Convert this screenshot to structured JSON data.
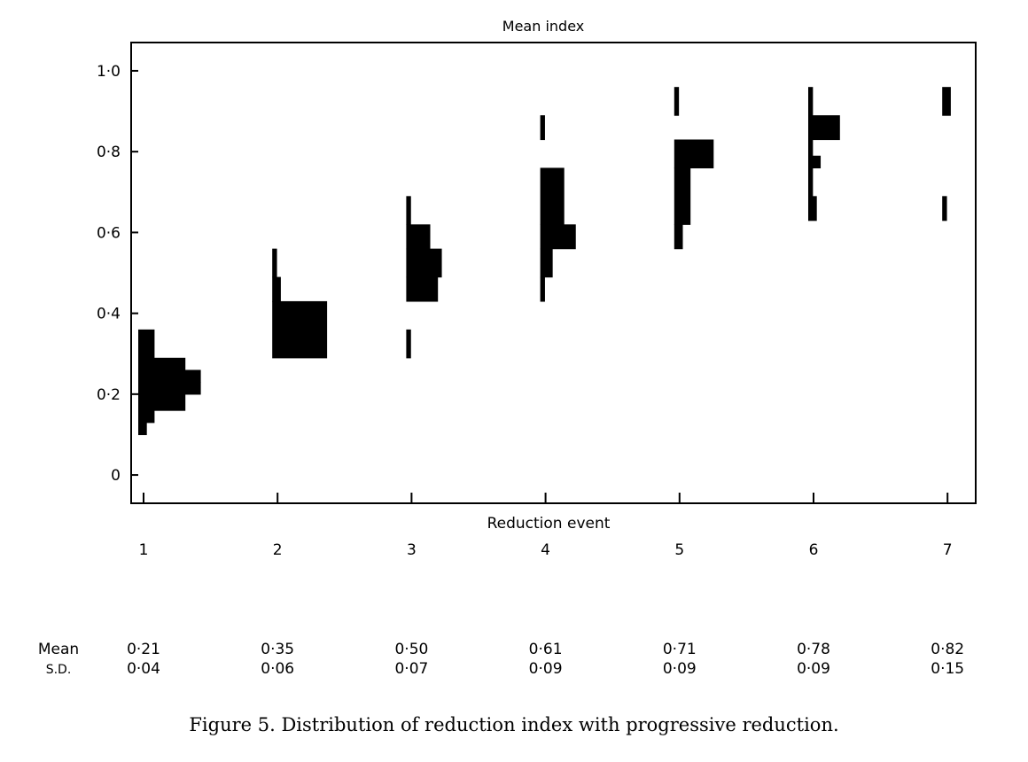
{
  "chart_data": {
    "type": "histogram",
    "ylabel": "Mean index",
    "xlabel": "Reduction event",
    "categories": [
      "1",
      "2",
      "3",
      "4",
      "5",
      "6",
      "7"
    ],
    "ylim": [
      -0.07,
      1.07
    ],
    "yticks": [
      0,
      0.2,
      0.4,
      0.6,
      0.8,
      1.0
    ],
    "ytick_labels": [
      "0",
      "0·2",
      "0·4",
      "0·6",
      "0·8",
      "1·0"
    ],
    "distributions": [
      {
        "event": 1,
        "bins": [
          [
            0.1,
            0.13,
            1
          ],
          [
            0.13,
            0.16,
            2
          ],
          [
            0.16,
            0.2,
            6
          ],
          [
            0.2,
            0.23,
            8
          ],
          [
            0.23,
            0.26,
            8
          ],
          [
            0.26,
            0.29,
            6
          ],
          [
            0.29,
            0.36,
            2
          ]
        ]
      },
      {
        "event": 2,
        "bins": [
          [
            0.29,
            0.43,
            7
          ],
          [
            0.43,
            0.49,
            1
          ],
          [
            0.49,
            0.56,
            0.5
          ]
        ]
      },
      {
        "event": 3,
        "bins": [
          [
            0.29,
            0.36,
            0.5
          ],
          [
            0.43,
            0.49,
            4
          ],
          [
            0.49,
            0.56,
            4.5
          ],
          [
            0.56,
            0.62,
            3
          ],
          [
            0.62,
            0.69,
            0.5
          ]
        ]
      },
      {
        "event": 4,
        "bins": [
          [
            0.43,
            0.49,
            0.5
          ],
          [
            0.49,
            0.56,
            1.5
          ],
          [
            0.56,
            0.62,
            4.5
          ],
          [
            0.62,
            0.76,
            3
          ],
          [
            0.83,
            0.89,
            0.5
          ]
        ]
      },
      {
        "event": 5,
        "bins": [
          [
            0.56,
            0.62,
            1
          ],
          [
            0.62,
            0.76,
            2
          ],
          [
            0.76,
            0.83,
            5
          ],
          [
            0.89,
            0.96,
            0.5
          ]
        ]
      },
      {
        "event": 6,
        "bins": [
          [
            0.63,
            0.69,
            1
          ],
          [
            0.69,
            0.76,
            0.5
          ],
          [
            0.76,
            0.79,
            1.5
          ],
          [
            0.79,
            0.83,
            0.5
          ],
          [
            0.83,
            0.89,
            4
          ],
          [
            0.89,
            0.96,
            0.5
          ]
        ]
      },
      {
        "event": 7,
        "bins": [
          [
            0.63,
            0.69,
            0.5
          ],
          [
            0.89,
            0.96,
            1
          ]
        ]
      }
    ],
    "stats": {
      "mean_label": "Mean",
      "sd_label": "S.D.",
      "mean": [
        "0·21",
        "0·35",
        "0·50",
        "0·61",
        "0·71",
        "0·78",
        "0·82"
      ],
      "sd": [
        "0·04",
        "0·06",
        "0·07",
        "0·09",
        "0·09",
        "0·09",
        "0·15"
      ]
    },
    "bar_color": "#000000"
  },
  "caption": "Figure 5. Distribution of reduction index with progressive reduction."
}
